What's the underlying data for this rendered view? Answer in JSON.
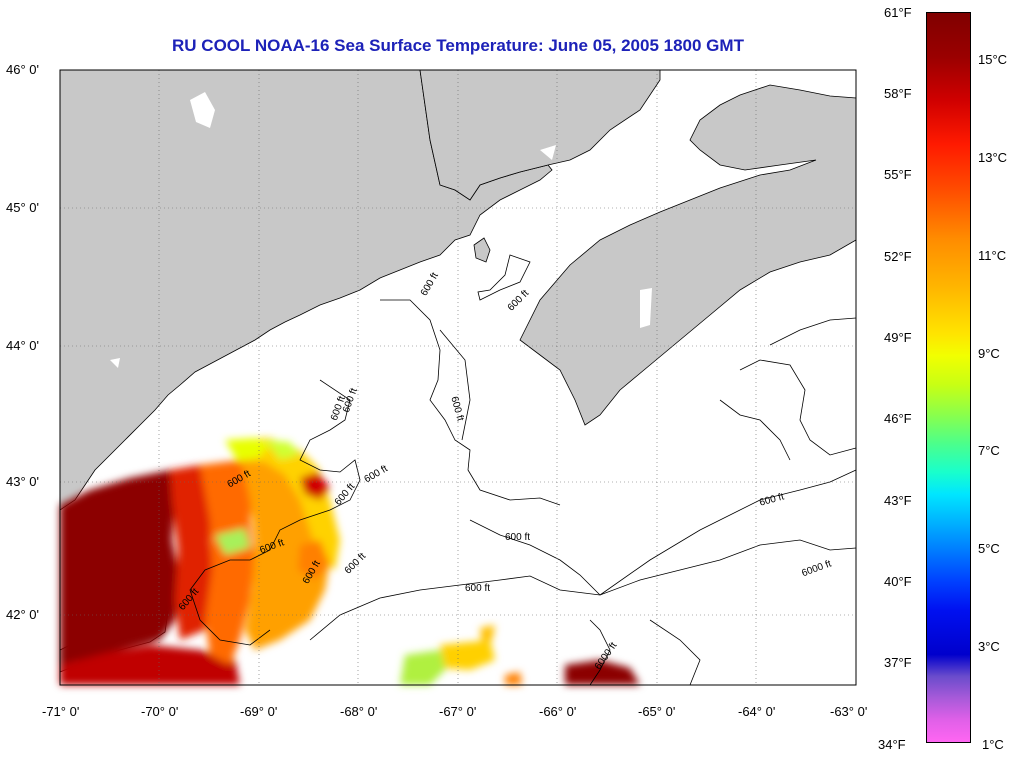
{
  "title": "RU COOL  NOAA-16  Sea Surface Temperature:  June 05, 2005 1800 GMT",
  "colors": {
    "land": "#c8c8c8",
    "ocean": "#ffffff",
    "title": "#1d22b8"
  },
  "map": {
    "lat_labels": [
      "46° 0'",
      "45° 0'",
      "44° 0'",
      "43° 0'",
      "42° 0'"
    ],
    "lon_labels": [
      "-71° 0'",
      "-70° 0'",
      "-69° 0'",
      "-68° 0'",
      "-67° 0'",
      "-66° 0'",
      "-65° 0'",
      "-64° 0'",
      "-63° 0'"
    ],
    "contour_labels": [
      "600 ft",
      "600 ft",
      "600 ft",
      "600 ft",
      "600 ft",
      "600 ft",
      "600 ft",
      "600 ft",
      "600 ft",
      "600 ft",
      "600 ft",
      "600 ft",
      "600 ft",
      "600 ft",
      "600 ft",
      "6000 ft",
      "6000 ft"
    ]
  },
  "colorbar": {
    "f_labels": [
      "61°F",
      "58°F",
      "55°F",
      "52°F",
      "49°F",
      "46°F",
      "43°F",
      "40°F",
      "37°F",
      "34°F"
    ],
    "c_labels": [
      "15°C",
      "13°C",
      "11°C",
      "9°C",
      "7°C",
      "5°C",
      "3°C",
      "1°C"
    ]
  }
}
